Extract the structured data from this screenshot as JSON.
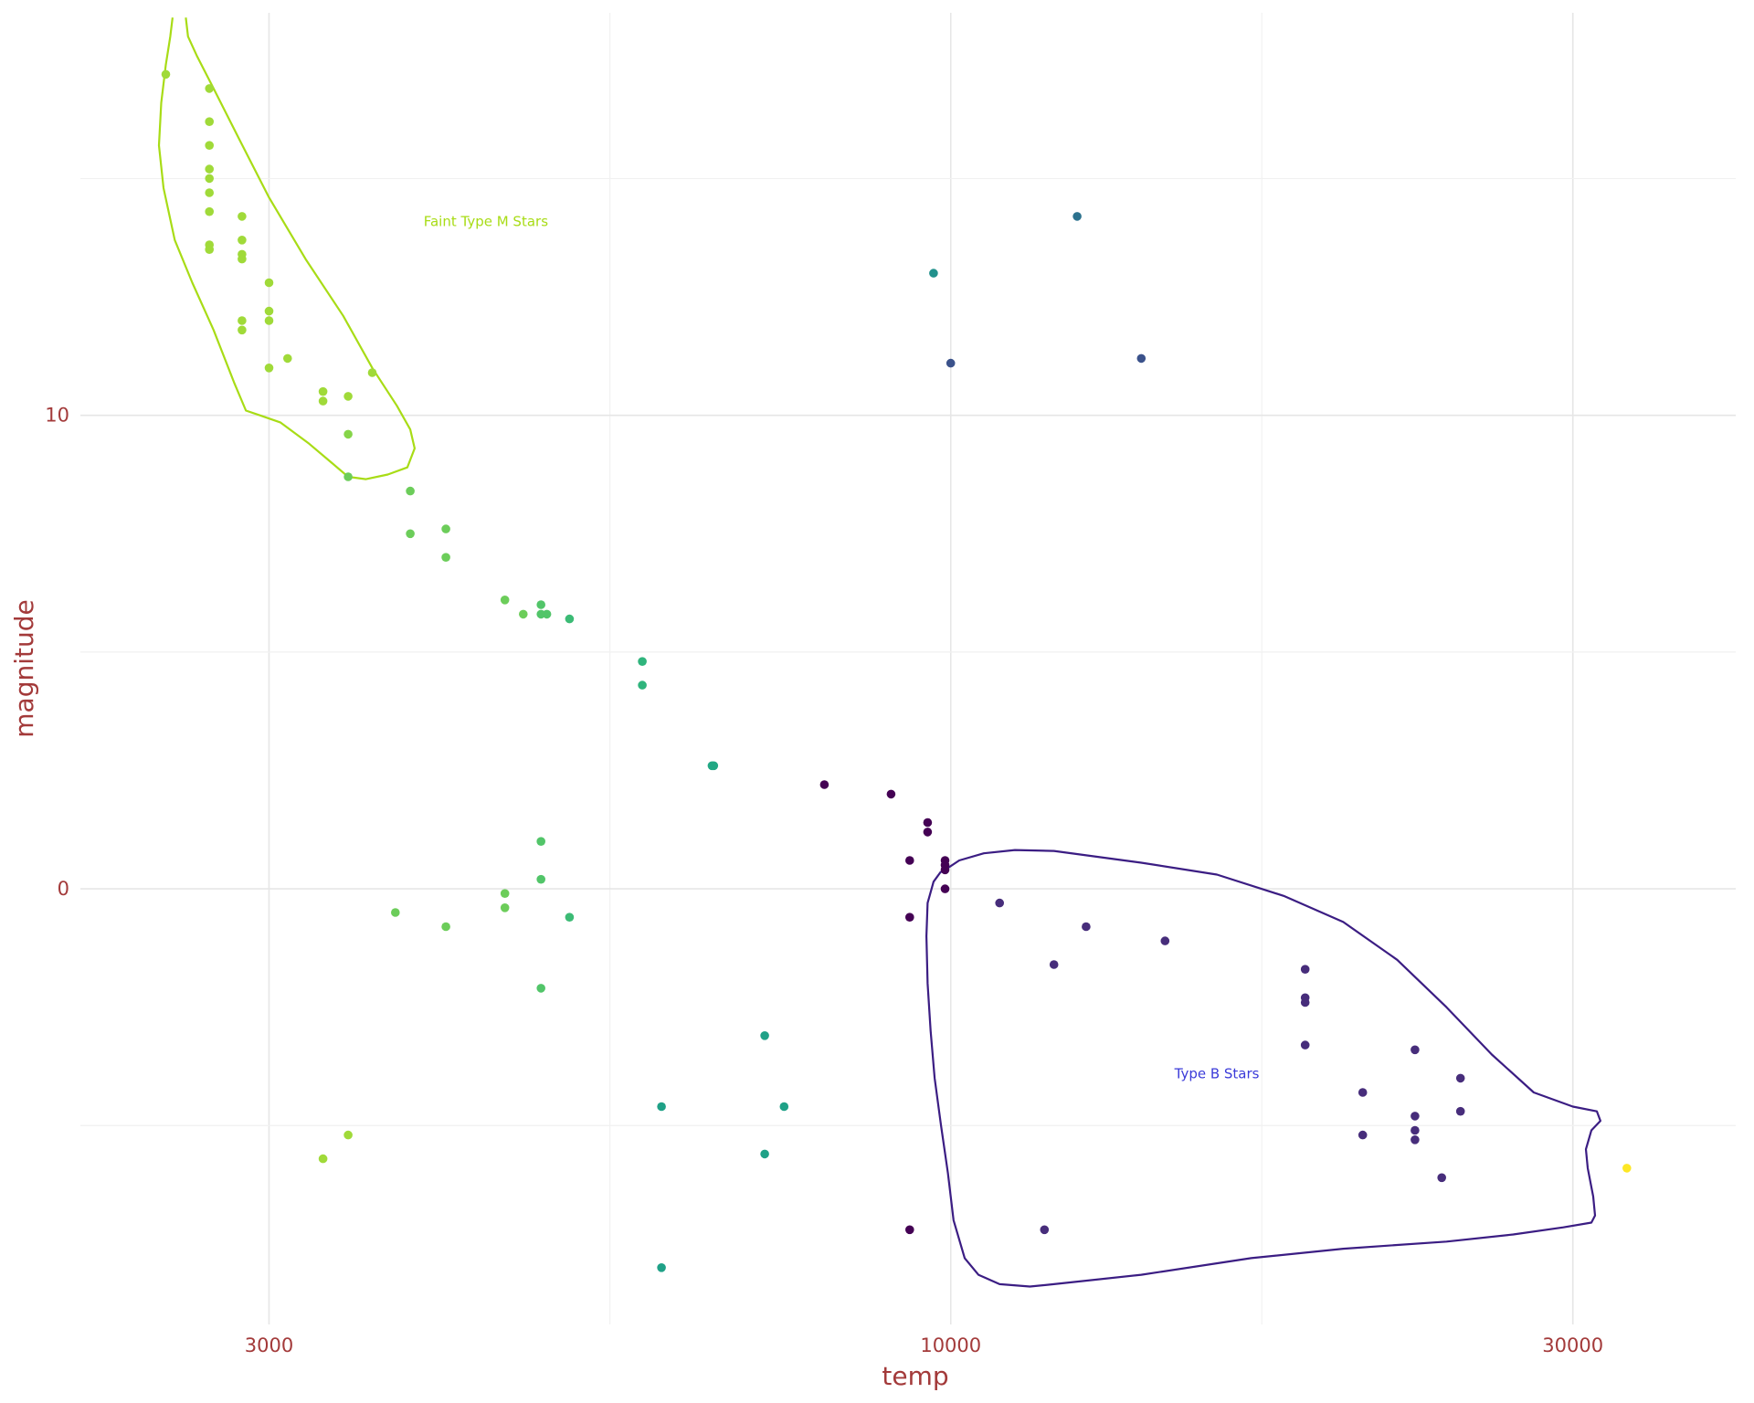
{
  "chart_data": {
    "type": "scatter",
    "xlabel": "temp",
    "ylabel": "magnitude",
    "x_scale": "log10",
    "xlim": [
      2150,
      40000
    ],
    "ylim": [
      -9.2,
      18.5
    ],
    "x_ticks": [
      3000,
      10000,
      30000
    ],
    "x_tick_labels": [
      "3000",
      "10000",
      "30000"
    ],
    "y_ticks": [
      0,
      10
    ],
    "y_tick_labels": [
      "0",
      "10"
    ],
    "grid": true,
    "points": [
      {
        "x": 2500,
        "y": 17.2,
        "color": "#a0da39"
      },
      {
        "x": 2700,
        "y": 16.9,
        "color": "#a0da39"
      },
      {
        "x": 2700,
        "y": 16.2,
        "color": "#a0da39"
      },
      {
        "x": 2700,
        "y": 15.7,
        "color": "#a0da39"
      },
      {
        "x": 2700,
        "y": 15.2,
        "color": "#a0da39"
      },
      {
        "x": 2700,
        "y": 15.0,
        "color": "#a0da39"
      },
      {
        "x": 2700,
        "y": 14.7,
        "color": "#a0da39"
      },
      {
        "x": 2700,
        "y": 14.3,
        "color": "#a0da39"
      },
      {
        "x": 2700,
        "y": 13.6,
        "color": "#a0da39"
      },
      {
        "x": 2700,
        "y": 13.5,
        "color": "#a0da39"
      },
      {
        "x": 2860,
        "y": 14.2,
        "color": "#a0da39"
      },
      {
        "x": 2860,
        "y": 13.7,
        "color": "#a0da39"
      },
      {
        "x": 2860,
        "y": 13.4,
        "color": "#a0da39"
      },
      {
        "x": 2860,
        "y": 13.3,
        "color": "#a0da39"
      },
      {
        "x": 2860,
        "y": 12.0,
        "color": "#a0da39"
      },
      {
        "x": 2860,
        "y": 11.8,
        "color": "#a0da39"
      },
      {
        "x": 3000,
        "y": 12.8,
        "color": "#a0da39"
      },
      {
        "x": 3000,
        "y": 12.2,
        "color": "#a0da39"
      },
      {
        "x": 3000,
        "y": 12.0,
        "color": "#a0da39"
      },
      {
        "x": 3000,
        "y": 11.0,
        "color": "#a0da39"
      },
      {
        "x": 3100,
        "y": 11.2,
        "color": "#a0da39"
      },
      {
        "x": 3300,
        "y": 10.5,
        "color": "#a0da39"
      },
      {
        "x": 3300,
        "y": 10.3,
        "color": "#a0da39"
      },
      {
        "x": 3450,
        "y": 10.4,
        "color": "#a0da39"
      },
      {
        "x": 3450,
        "y": 9.6,
        "color": "#86d549"
      },
      {
        "x": 3450,
        "y": 8.7,
        "color": "#6ccd5a"
      },
      {
        "x": 3600,
        "y": 10.9,
        "color": "#a0da39"
      },
      {
        "x": 3850,
        "y": 8.4,
        "color": "#6ccd5a"
      },
      {
        "x": 3850,
        "y": 7.5,
        "color": "#6ccd5a"
      },
      {
        "x": 4100,
        "y": 7.6,
        "color": "#6ccd5a"
      },
      {
        "x": 4100,
        "y": 7.0,
        "color": "#6ccd5a"
      },
      {
        "x": 4550,
        "y": 6.1,
        "color": "#6ccd5a"
      },
      {
        "x": 4700,
        "y": 5.8,
        "color": "#6ccd5a"
      },
      {
        "x": 4850,
        "y": 6.0,
        "color": "#52c569"
      },
      {
        "x": 4850,
        "y": 5.8,
        "color": "#52c569"
      },
      {
        "x": 4900,
        "y": 5.8,
        "color": "#52c569"
      },
      {
        "x": 5100,
        "y": 5.7,
        "color": "#3cbb75"
      },
      {
        "x": 5800,
        "y": 4.8,
        "color": "#2fb47c"
      },
      {
        "x": 5800,
        "y": 4.3,
        "color": "#2fb47c"
      },
      {
        "x": 6560,
        "y": 2.6,
        "color": "#22a884"
      },
      {
        "x": 6580,
        "y": 2.6,
        "color": "#22a884"
      },
      {
        "x": 8000,
        "y": 2.2,
        "color": "#440154"
      },
      {
        "x": 9000,
        "y": 2.0,
        "color": "#440154"
      },
      {
        "x": 9600,
        "y": 1.4,
        "color": "#440154"
      },
      {
        "x": 9600,
        "y": 1.2,
        "color": "#440154"
      },
      {
        "x": 9300,
        "y": 0.6,
        "color": "#440154"
      },
      {
        "x": 9900,
        "y": 0.6,
        "color": "#440154"
      },
      {
        "x": 9900,
        "y": 0.5,
        "color": "#440154"
      },
      {
        "x": 9900,
        "y": 0.4,
        "color": "#440154"
      },
      {
        "x": 9900,
        "y": 0.0,
        "color": "#440154"
      },
      {
        "x": 9300,
        "y": -0.6,
        "color": "#440154"
      },
      {
        "x": 4100,
        "y": -0.8,
        "color": "#6ccd5a"
      },
      {
        "x": 3750,
        "y": -0.5,
        "color": "#6ccd5a"
      },
      {
        "x": 4550,
        "y": -0.1,
        "color": "#6ccd5a"
      },
      {
        "x": 4550,
        "y": -0.4,
        "color": "#6ccd5a"
      },
      {
        "x": 4850,
        "y": 0.2,
        "color": "#52c569"
      },
      {
        "x": 4850,
        "y": 1.0,
        "color": "#52c569"
      },
      {
        "x": 5100,
        "y": -0.6,
        "color": "#3cbb75"
      },
      {
        "x": 4850,
        "y": -2.1,
        "color": "#52c569"
      },
      {
        "x": 6000,
        "y": -4.6,
        "color": "#1fa187"
      },
      {
        "x": 7200,
        "y": -3.1,
        "color": "#1fa187"
      },
      {
        "x": 7450,
        "y": -4.6,
        "color": "#1fa187"
      },
      {
        "x": 7200,
        "y": -5.6,
        "color": "#1fa187"
      },
      {
        "x": 6000,
        "y": -8.0,
        "color": "#1fa187"
      },
      {
        "x": 3300,
        "y": -5.7,
        "color": "#a0da39"
      },
      {
        "x": 3450,
        "y": -5.2,
        "color": "#a0da39"
      },
      {
        "x": 9300,
        "y": -7.2,
        "color": "#440154"
      },
      {
        "x": 9700,
        "y": 13.0,
        "color": "#21918c"
      },
      {
        "x": 12500,
        "y": 14.2,
        "color": "#2c728e"
      },
      {
        "x": 10000,
        "y": 11.1,
        "color": "#3b528b"
      },
      {
        "x": 14000,
        "y": 11.2,
        "color": "#3b528b"
      },
      {
        "x": 10900,
        "y": -0.3,
        "color": "#472d7b"
      },
      {
        "x": 12000,
        "y": -1.6,
        "color": "#472d7b"
      },
      {
        "x": 12700,
        "y": -0.8,
        "color": "#472d7b"
      },
      {
        "x": 14600,
        "y": -1.1,
        "color": "#472d7b"
      },
      {
        "x": 11800,
        "y": -7.2,
        "color": "#472d7b"
      },
      {
        "x": 18700,
        "y": -1.7,
        "color": "#472d7b"
      },
      {
        "x": 18700,
        "y": -2.3,
        "color": "#472d7b"
      },
      {
        "x": 18700,
        "y": -2.4,
        "color": "#472d7b"
      },
      {
        "x": 18700,
        "y": -3.3,
        "color": "#472d7b"
      },
      {
        "x": 20700,
        "y": -4.3,
        "color": "#472d7b"
      },
      {
        "x": 20700,
        "y": -5.2,
        "color": "#472d7b"
      },
      {
        "x": 22700,
        "y": -3.4,
        "color": "#472d7b"
      },
      {
        "x": 22700,
        "y": -4.8,
        "color": "#472d7b"
      },
      {
        "x": 22700,
        "y": -5.1,
        "color": "#472d7b"
      },
      {
        "x": 22700,
        "y": -5.3,
        "color": "#472d7b"
      },
      {
        "x": 23800,
        "y": -6.1,
        "color": "#472d7b"
      },
      {
        "x": 24600,
        "y": -4.0,
        "color": "#472d7b"
      },
      {
        "x": 24600,
        "y": -4.7,
        "color": "#472d7b"
      },
      {
        "x": 33000,
        "y": -5.9,
        "color": "#fde725"
      }
    ],
    "contours": [
      {
        "color": "#a8dc16",
        "path": [
          [
            2590,
            18.4
          ],
          [
            2600,
            18.0
          ],
          [
            2640,
            17.6
          ],
          [
            2720,
            16.9
          ],
          [
            2850,
            15.8
          ],
          [
            3000,
            14.6
          ],
          [
            3200,
            13.3
          ],
          [
            3420,
            12.1
          ],
          [
            3600,
            11.0
          ],
          [
            3760,
            10.2
          ],
          [
            3850,
            9.7
          ],
          [
            3880,
            9.3
          ],
          [
            3830,
            8.9
          ],
          [
            3700,
            8.75
          ],
          [
            3560,
            8.65
          ],
          [
            3450,
            8.7
          ],
          [
            3350,
            9.0
          ],
          [
            3220,
            9.4
          ],
          [
            3060,
            9.85
          ],
          [
            2950,
            10.0
          ],
          [
            2880,
            10.1
          ],
          [
            2820,
            10.7
          ],
          [
            2720,
            11.8
          ],
          [
            2620,
            12.8
          ],
          [
            2540,
            13.7
          ],
          [
            2490,
            14.8
          ],
          [
            2470,
            15.7
          ],
          [
            2480,
            16.6
          ],
          [
            2500,
            17.4
          ],
          [
            2520,
            18.0
          ],
          [
            2530,
            18.4
          ]
        ]
      },
      {
        "color": "#3b1d83",
        "path": [
          [
            9900,
            0.4
          ],
          [
            10150,
            0.6
          ],
          [
            10600,
            0.75
          ],
          [
            11200,
            0.82
          ],
          [
            12000,
            0.8
          ],
          [
            14000,
            0.55
          ],
          [
            16000,
            0.3
          ],
          [
            18000,
            -0.15
          ],
          [
            20000,
            -0.7
          ],
          [
            22000,
            -1.5
          ],
          [
            24000,
            -2.5
          ],
          [
            26000,
            -3.5
          ],
          [
            28000,
            -4.3
          ],
          [
            30000,
            -4.6
          ],
          [
            31300,
            -4.7
          ],
          [
            31500,
            -4.9
          ],
          [
            31000,
            -5.1
          ],
          [
            30700,
            -5.5
          ],
          [
            30800,
            -5.9
          ],
          [
            31100,
            -6.5
          ],
          [
            31200,
            -6.9
          ],
          [
            31000,
            -7.05
          ],
          [
            29500,
            -7.15
          ],
          [
            27000,
            -7.3
          ],
          [
            24000,
            -7.45
          ],
          [
            20000,
            -7.6
          ],
          [
            17000,
            -7.8
          ],
          [
            14000,
            -8.15
          ],
          [
            12000,
            -8.35
          ],
          [
            11500,
            -8.4
          ],
          [
            10900,
            -8.35
          ],
          [
            10500,
            -8.15
          ],
          [
            10250,
            -7.8
          ],
          [
            10050,
            -7.0
          ],
          [
            9950,
            -6.0
          ],
          [
            9830,
            -5.0
          ],
          [
            9720,
            -4.0
          ],
          [
            9650,
            -3.0
          ],
          [
            9600,
            -2.0
          ],
          [
            9580,
            -1.0
          ],
          [
            9600,
            -0.3
          ],
          [
            9700,
            0.15
          ],
          [
            9820,
            0.35
          ],
          [
            9900,
            0.4
          ]
        ]
      }
    ],
    "annotations": [
      {
        "text": "Faint Type M Stars",
        "x": 4400,
        "y": 14.0,
        "color": "#a8dc16"
      },
      {
        "text": "Type B Stars",
        "x": 16000,
        "y": -4.0,
        "color": "#3b3bd9"
      }
    ]
  }
}
